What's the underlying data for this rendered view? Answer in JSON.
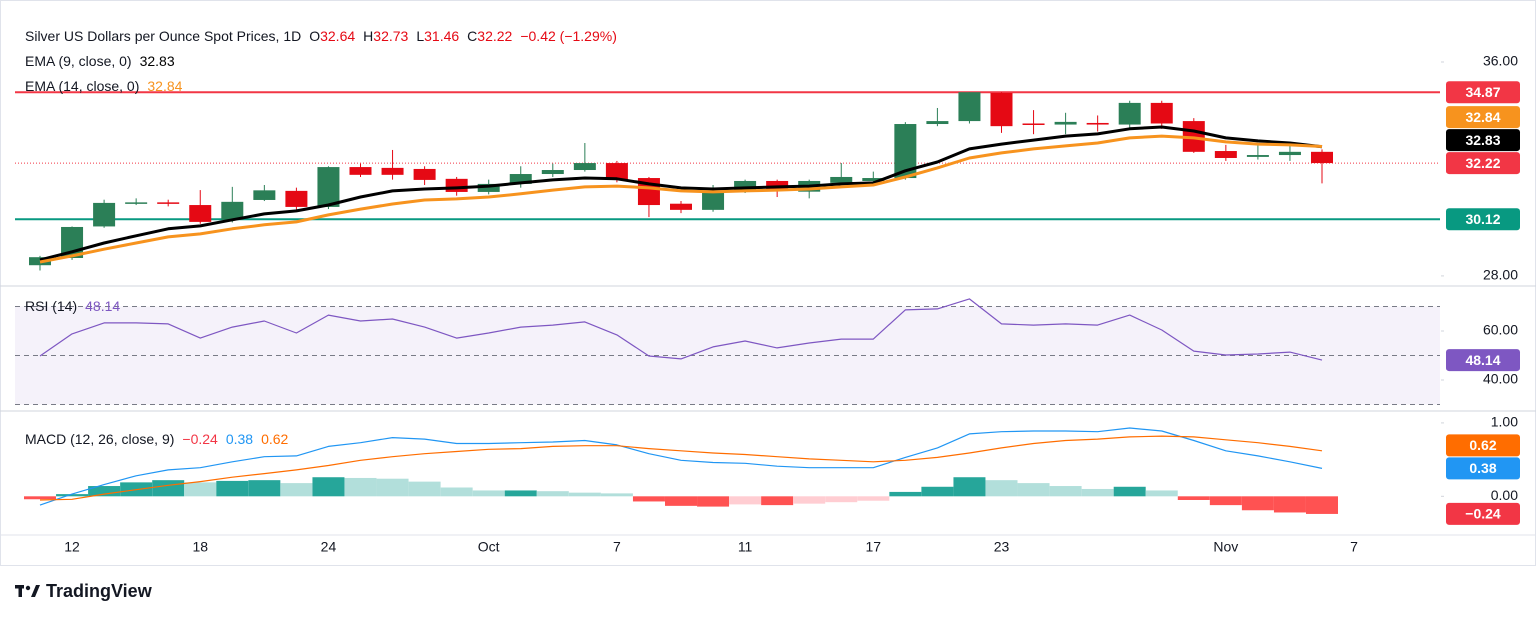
{
  "header": {
    "title": "Silver US Dollars per Ounce Spot Prices, 1D",
    "ohlc": [
      {
        "key": "O",
        "value": "32.64"
      },
      {
        "key": "H",
        "value": "32.73"
      },
      {
        "key": "L",
        "value": "31.46"
      },
      {
        "key": "C",
        "value": "32.22"
      }
    ],
    "change": "−0.42 (−1.29%)",
    "brand": "TradingView"
  },
  "chart_data": [
    {
      "type": "candlestick",
      "categories": [
        null,
        "12",
        null,
        null,
        null,
        "18",
        null,
        null,
        null,
        "24",
        null,
        null,
        null,
        null,
        "Oct",
        null,
        null,
        null,
        "7",
        null,
        null,
        null,
        "11",
        null,
        null,
        null,
        "17",
        null,
        null,
        null,
        "23",
        null,
        null,
        null,
        null,
        null,
        null,
        "Nov",
        null,
        null,
        null,
        "7"
      ],
      "open": [
        28.4,
        28.67,
        29.85,
        30.73,
        30.75,
        30.65,
        30.1,
        30.84,
        31.18,
        30.58,
        32.07,
        32.04,
        32.0,
        31.63,
        31.14,
        31.44,
        31.81,
        31.96,
        32.22,
        31.66,
        30.7,
        30.47,
        31.14,
        31.55,
        31.15,
        31.48,
        31.55,
        31.66,
        33.68,
        33.79,
        34.84,
        33.7,
        33.66,
        33.72,
        33.66,
        34.47,
        33.79,
        32.67,
        32.45,
        32.52,
        32.64,
        null
      ],
      "high": [
        28.75,
        29.85,
        30.85,
        30.9,
        30.85,
        31.21,
        31.33,
        31.4,
        31.3,
        32.1,
        32.2,
        32.71,
        32.1,
        31.7,
        31.6,
        32.1,
        32.2,
        32.97,
        32.3,
        31.7,
        30.8,
        31.4,
        31.6,
        31.6,
        31.6,
        32.22,
        31.9,
        33.75,
        34.28,
        34.87,
        34.87,
        34.2,
        34.1,
        34.0,
        34.55,
        34.55,
        33.9,
        32.9,
        32.9,
        32.9,
        32.73,
        null
      ],
      "low": [
        28.2,
        28.6,
        29.8,
        30.65,
        30.6,
        29.95,
        30.0,
        30.8,
        30.4,
        30.5,
        31.7,
        31.6,
        31.4,
        31.0,
        31.05,
        31.3,
        31.7,
        31.9,
        31.5,
        30.2,
        30.35,
        30.4,
        31.1,
        30.95,
        30.9,
        31.4,
        31.5,
        31.6,
        33.6,
        33.7,
        33.35,
        33.3,
        33.3,
        33.4,
        33.5,
        33.5,
        32.6,
        32.3,
        32.35,
        32.3,
        31.46,
        null
      ],
      "close": [
        28.7,
        29.83,
        30.73,
        30.75,
        30.7,
        30.02,
        30.77,
        31.2,
        30.58,
        32.07,
        31.78,
        31.78,
        31.59,
        31.14,
        31.44,
        31.81,
        31.96,
        32.22,
        31.59,
        30.65,
        30.47,
        31.2,
        31.55,
        31.18,
        31.55,
        31.7,
        31.66,
        33.68,
        33.79,
        34.87,
        33.6,
        33.68,
        33.76,
        33.66,
        34.47,
        33.7,
        32.64,
        32.41,
        32.52,
        32.64,
        32.22,
        null
      ],
      "up_color": "#2b7f57",
      "down_color": "#e50914",
      "series": [
        {
          "name": "EMA (9, close, 0)",
          "color": "#000000",
          "values": [
            28.6,
            28.9,
            29.23,
            29.5,
            29.76,
            29.87,
            30.1,
            30.32,
            30.43,
            30.65,
            30.95,
            31.18,
            31.25,
            31.29,
            31.36,
            31.48,
            31.59,
            31.66,
            31.63,
            31.44,
            31.29,
            31.25,
            31.29,
            31.33,
            31.36,
            31.44,
            31.48,
            31.93,
            32.26,
            32.75,
            32.93,
            33.08,
            33.23,
            33.31,
            33.5,
            33.57,
            33.42,
            33.16,
            33.05,
            32.97,
            32.83,
            null
          ]
        },
        {
          "name": "EMA (14, close, 0)",
          "color": "#f7931e",
          "values": [
            28.52,
            28.75,
            29.0,
            29.23,
            29.46,
            29.57,
            29.76,
            29.91,
            30.02,
            30.28,
            30.5,
            30.69,
            30.84,
            30.88,
            30.95,
            31.07,
            31.21,
            31.33,
            31.36,
            31.29,
            31.18,
            31.14,
            31.18,
            31.21,
            31.25,
            31.33,
            31.4,
            31.7,
            32.04,
            32.41,
            32.6,
            32.75,
            32.86,
            32.97,
            33.16,
            33.23,
            33.16,
            33.01,
            32.93,
            32.9,
            32.84,
            null
          ]
        }
      ],
      "ylim": [
        27.66,
        37.57
      ],
      "yticks": [
        {
          "value": 36,
          "label": "36.00"
        },
        {
          "value": 28,
          "label": "28.00"
        }
      ],
      "hlines": [
        {
          "value": 34.87,
          "color": "#f23645",
          "style": "solid"
        },
        {
          "value": 30.12,
          "color": "#089981",
          "style": "solid"
        },
        {
          "value": 32.22,
          "color": "#f23645",
          "style": "dotted"
        }
      ],
      "badges": [
        {
          "value": 34.87,
          "color": "#f23645"
        },
        {
          "value": 32.84,
          "color": "#f7931e"
        },
        {
          "value": 32.83,
          "color": "#000000"
        },
        {
          "value": 32.22,
          "color": "#f23645"
        },
        {
          "value": 30.12,
          "color": "#089981"
        }
      ]
    },
    {
      "type": "line",
      "series": [
        {
          "name": "RSI (14)",
          "color": "#7e57c2",
          "values": [
            49.8,
            58.8,
            63.3,
            63.3,
            62.9,
            57.1,
            61.6,
            64.1,
            59.2,
            66.5,
            64.1,
            64.9,
            61.6,
            57.1,
            59.2,
            61.6,
            62.4,
            63.7,
            58.4,
            49.8,
            48.6,
            53.5,
            55.9,
            53.1,
            55.1,
            56.7,
            56.7,
            68.6,
            69.0,
            73.1,
            62.9,
            62.4,
            62.9,
            62.4,
            66.5,
            60.4,
            51.8,
            50.2,
            50.6,
            51.4,
            48.14,
            null
          ]
        }
      ],
      "ylim": [
        27.76,
        77.55
      ],
      "yticks": [
        {
          "value": 60,
          "label": "60.00"
        },
        {
          "value": 40,
          "label": "40.00"
        }
      ],
      "band": [
        30,
        70
      ],
      "band_color": "#7e57c2",
      "dashed_lines": [
        70,
        50,
        30
      ],
      "badges": [
        {
          "value": 48.14,
          "color": "#7e57c2"
        }
      ]
    },
    {
      "type": "bar",
      "legend_title": "MACD (12, 26, close, 9)",
      "series": [
        {
          "type": "bar",
          "colors": [
            "#26a69a",
            "#b2dfdb",
            "#ff5252",
            "#ffcdd2"
          ],
          "values": [
            -0.04,
            0.03,
            0.14,
            0.19,
            0.22,
            0.19,
            0.21,
            0.22,
            0.18,
            0.26,
            0.25,
            0.24,
            0.2,
            0.12,
            0.08,
            0.08,
            0.07,
            0.05,
            0.04,
            -0.07,
            -0.13,
            -0.14,
            -0.11,
            -0.12,
            -0.1,
            -0.08,
            -0.06,
            0.06,
            0.13,
            0.26,
            0.22,
            0.18,
            0.14,
            0.1,
            0.13,
            0.08,
            -0.05,
            -0.12,
            -0.19,
            -0.22,
            -0.24,
            null
          ]
        },
        {
          "type": "line",
          "color": "#2196f3",
          "values": [
            -0.12,
            0.03,
            0.16,
            0.28,
            0.36,
            0.39,
            0.47,
            0.54,
            0.55,
            0.68,
            0.73,
            0.8,
            0.78,
            0.72,
            0.72,
            0.73,
            0.74,
            0.76,
            0.7,
            0.58,
            0.49,
            0.46,
            0.45,
            0.41,
            0.39,
            0.39,
            0.39,
            0.53,
            0.66,
            0.85,
            0.88,
            0.89,
            0.89,
            0.88,
            0.93,
            0.89,
            0.76,
            0.62,
            0.55,
            0.47,
            0.38,
            null
          ]
        },
        {
          "type": "line",
          "color": "#ff6d00",
          "values": [
            -0.05,
            -0.04,
            0.03,
            0.09,
            0.15,
            0.2,
            0.26,
            0.31,
            0.36,
            0.42,
            0.49,
            0.54,
            0.58,
            0.61,
            0.64,
            0.65,
            0.68,
            0.69,
            0.69,
            0.65,
            0.62,
            0.59,
            0.57,
            0.54,
            0.51,
            0.49,
            0.47,
            0.49,
            0.53,
            0.59,
            0.66,
            0.72,
            0.76,
            0.78,
            0.81,
            0.82,
            0.81,
            0.77,
            0.73,
            0.68,
            0.62,
            null
          ]
        }
      ],
      "ylim": [
        -0.527,
        1.135
      ],
      "yticks": [
        {
          "value": 1,
          "label": "1.00"
        },
        {
          "value": 0,
          "label": "0.00"
        }
      ],
      "badges": [
        {
          "value": -0.24,
          "label": "−0.24",
          "color": "#f23645"
        },
        {
          "value": 0.38,
          "color": "#2196f3"
        },
        {
          "value": 0.62,
          "color": "#ff6d00"
        }
      ]
    }
  ]
}
